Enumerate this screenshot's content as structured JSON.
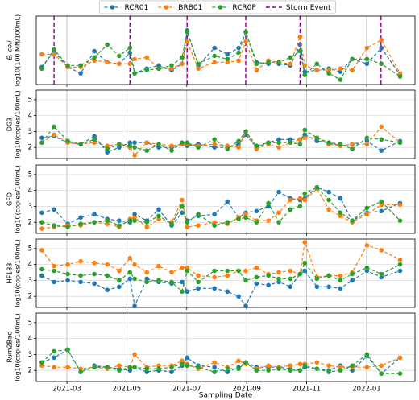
{
  "chart_data": {
    "type": "line",
    "series": [
      {
        "name": "RCR01",
        "color": "#1f77b4"
      },
      {
        "name": "BRB01",
        "color": "#ff7f0e"
      },
      {
        "name": "RCR0P",
        "color": "#2ca02c"
      }
    ],
    "events": {
      "name": "Storm Event",
      "color": "#8b008b",
      "x": [
        2021.131,
        2021.342,
        2021.501,
        2021.664,
        2021.815,
        2022.04
      ]
    },
    "x": [
      2021.097,
      2021.131,
      2021.169,
      2021.205,
      2021.243,
      2021.279,
      2021.312,
      2021.342,
      2021.355,
      2021.389,
      2021.422,
      2021.458,
      2021.487,
      2021.501,
      2021.532,
      2021.577,
      2021.613,
      2021.644,
      2021.664,
      2021.694,
      2021.727,
      2021.756,
      2021.788,
      2021.815,
      2021.828,
      2021.862,
      2021.895,
      2021.927,
      2021.96,
      2022.001,
      2022.041,
      2022.093
    ],
    "xlim": [
      2021.0815,
      2022.1345
    ],
    "xticks": [
      {
        "value": 2021.1667,
        "label": "2021-03"
      },
      {
        "value": 2021.3333,
        "label": "2021-05"
      },
      {
        "value": 2021.5,
        "label": "2021-07"
      },
      {
        "value": 2021.6667,
        "label": "2021-09"
      },
      {
        "value": 2021.8333,
        "label": "2021-11"
      },
      {
        "value": 2022.0,
        "label": "2022-01"
      }
    ],
    "xlabel": "Sampling Date",
    "grid": true,
    "panels": [
      {
        "ylabel": [
          "E. coli",
          "log10(100 MN/100mL)"
        ],
        "ylim": [
          1.3,
          5.6
        ],
        "storm_events": true,
        "values": [
          [
            2.4,
            3.4,
            2.4,
            2.0,
            3.4,
            2.7,
            2.6,
            3.3,
            2.0,
            2.3,
            2.5,
            2.2,
            2.6,
            4.7,
            2.5,
            3.6,
            3.2,
            3.6,
            4.6,
            2.7,
            2.6,
            2.6,
            2.5,
            3.8,
            2.1,
            2.2,
            2.3,
            2.1,
            2.9,
            2.6,
            3.6,
            1.9
          ],
          [
            3.2,
            3.2,
            2.4,
            2.4,
            2.8,
            2.7,
            2.6,
            2.6,
            2.9,
            3.0,
            2.3,
            2.3,
            2.6,
            4.0,
            2.3,
            2.7,
            2.7,
            2.8,
            4.0,
            2.2,
            2.8,
            2.7,
            2.6,
            4.3,
            2.5,
            2.2,
            2.2,
            2.3,
            2.2,
            3.6,
            4.1,
            2.0
          ],
          [
            2.3,
            3.5,
            2.5,
            2.5,
            3.0,
            3.8,
            3.1,
            3.6,
            2.0,
            2.2,
            2.3,
            2.5,
            3.0,
            4.6,
            2.6,
            3.1,
            2.9,
            3.3,
            4.6,
            2.6,
            2.7,
            2.7,
            3.0,
            3.4,
            1.9,
            2.6,
            2.0,
            1.6,
            2.9,
            2.9,
            2.6,
            1.8
          ]
        ]
      },
      {
        "ylabel": [
          "DG3",
          "log10(copies/100mL)"
        ],
        "ylim": [
          1.3,
          5.6
        ],
        "yticks": [
          2,
          3,
          4,
          5
        ],
        "values": [
          [
            2.6,
            2.7,
            2.3,
            2.2,
            2.7,
            1.7,
            2.0,
            2.3,
            2.3,
            2.3,
            2.0,
            2.0,
            2.2,
            2.1,
            2.2,
            2.0,
            2.0,
            2.2,
            2.8,
            2.0,
            2.3,
            2.5,
            2.5,
            2.5,
            2.8,
            2.4,
            2.3,
            2.1,
            2.2,
            2.4,
            1.8,
            2.4
          ],
          [
            2.3,
            2.8,
            2.3,
            2.2,
            2.3,
            2.1,
            2.2,
            2.0,
            1.5,
            2.3,
            2.2,
            2.1,
            2.2,
            2.2,
            2.1,
            2.2,
            2.1,
            2.0,
            3.0,
            1.9,
            2.2,
            2.0,
            2.3,
            2.5,
            2.6,
            2.6,
            2.2,
            2.1,
            2.2,
            2.2,
            3.3,
            2.3
          ],
          [
            2.3,
            3.3,
            2.4,
            2.2,
            2.5,
            1.9,
            2.2,
            2.1,
            2.0,
            1.8,
            2.2,
            1.8,
            2.3,
            2.3,
            2.0,
            2.5,
            1.9,
            2.4,
            3.0,
            2.1,
            2.3,
            2.3,
            2.3,
            2.2,
            3.1,
            2.6,
            2.3,
            2.2,
            1.9,
            2.6,
            2.5,
            2.3
          ]
        ]
      },
      {
        "ylabel": [
          "GFD",
          "log10(copies/100mL)"
        ],
        "ylim": [
          1.3,
          5.6
        ],
        "yticks": [
          2,
          3,
          4,
          5
        ],
        "values": [
          [
            2.6,
            2.8,
            1.9,
            2.3,
            2.5,
            2.2,
            2.1,
            2.0,
            2.5,
            2.1,
            2.8,
            1.8,
            2.6,
            2.1,
            2.4,
            2.5,
            3.3,
            2.3,
            2.6,
            2.7,
            3.0,
            3.9,
            3.5,
            3.4,
            3.5,
            4.2,
            3.9,
            3.5,
            2.1,
            2.6,
            2.7,
            3.2
          ],
          [
            1.6,
            1.7,
            1.8,
            1.8,
            2.0,
            1.9,
            1.7,
            2.2,
            2.3,
            1.7,
            2.2,
            2.0,
            3.4,
            1.7,
            1.8,
            2.0,
            1.9,
            2.3,
            2.5,
            2.1,
            2.1,
            2.6,
            3.4,
            3.5,
            3.4,
            4.1,
            2.8,
            2.4,
            2.0,
            2.5,
            3.1,
            3.1
          ],
          [
            2.0,
            1.8,
            1.7,
            1.9,
            2.0,
            2.1,
            1.8,
            2.1,
            2.1,
            2.0,
            2.4,
            1.9,
            3.0,
            2.0,
            2.5,
            1.8,
            2.0,
            2.2,
            2.3,
            2.0,
            3.2,
            2.0,
            2.8,
            3.0,
            3.8,
            4.2,
            3.4,
            2.6,
            2.1,
            2.9,
            3.3,
            2.1
          ]
        ]
      },
      {
        "ylabel": [
          "HF183",
          "log10(copies/100mL)"
        ],
        "ylim": [
          1.3,
          5.6
        ],
        "yticks": [
          2,
          3,
          4,
          5
        ],
        "values": [
          [
            3.3,
            2.9,
            3.0,
            2.9,
            2.8,
            2.4,
            2.6,
            3.1,
            1.4,
            3.1,
            2.9,
            2.8,
            2.9,
            2.3,
            2.5,
            2.5,
            2.3,
            2.0,
            1.4,
            2.8,
            2.7,
            2.9,
            2.6,
            3.4,
            3.6,
            2.6,
            2.6,
            2.5,
            3.0,
            3.6,
            3.2,
            3.6
          ],
          [
            4.9,
            3.9,
            4.0,
            4.2,
            4.1,
            4.0,
            3.6,
            4.4,
            4.0,
            3.5,
            3.9,
            3.5,
            3.8,
            3.8,
            3.3,
            3.2,
            3.3,
            3.6,
            3.6,
            3.8,
            3.4,
            3.5,
            3.6,
            3.4,
            5.4,
            3.2,
            3.3,
            3.3,
            3.5,
            5.2,
            4.9,
            4.3
          ],
          [
            3.7,
            3.6,
            3.4,
            3.3,
            3.4,
            3.3,
            3.0,
            3.5,
            3.1,
            2.9,
            3.0,
            2.9,
            2.3,
            3.6,
            2.9,
            3.6,
            3.6,
            3.6,
            3.0,
            3.2,
            3.3,
            3.1,
            3.1,
            3.4,
            4.1,
            3.1,
            3.3,
            3.0,
            3.4,
            3.8,
            3.4,
            4.0
          ]
        ]
      },
      {
        "ylabel": [
          "Rum2Bac",
          "log10(copies/100mL)"
        ],
        "ylim": [
          1.3,
          5.6
        ],
        "yticks": [
          2,
          3,
          4,
          5
        ],
        "values": [
          [
            2.5,
            2.8,
            3.3,
            1.9,
            2.3,
            2.2,
            2.1,
            2.0,
            2.2,
            1.9,
            2.0,
            1.9,
            2.3,
            2.8,
            2.3,
            2.2,
            1.9,
            2.2,
            2.5,
            2.2,
            2.2,
            2.2,
            2.1,
            2.0,
            2.2,
            2.1,
            2.0,
            2.3,
            2.0,
            2.9,
            1.8,
            2.8
          ],
          [
            2.3,
            2.2,
            2.2,
            2.1,
            2.2,
            2.1,
            2.3,
            2.2,
            3.0,
            2.2,
            2.3,
            2.3,
            2.6,
            2.4,
            2.1,
            2.5,
            2.2,
            2.6,
            2.4,
            2.1,
            2.3,
            2.2,
            2.3,
            2.4,
            2.4,
            2.5,
            2.3,
            2.2,
            2.2,
            2.2,
            2.3,
            2.8
          ],
          [
            2.5,
            3.2,
            3.3,
            1.9,
            2.2,
            2.2,
            2.0,
            2.2,
            2.2,
            2.1,
            2.1,
            2.2,
            2.4,
            2.3,
            2.2,
            1.9,
            2.1,
            2.1,
            2.5,
            2.0,
            2.0,
            2.1,
            2.0,
            2.0,
            2.3,
            2.1,
            1.9,
            2.0,
            2.3,
            3.0,
            1.8,
            1.8
          ]
        ]
      }
    ]
  }
}
